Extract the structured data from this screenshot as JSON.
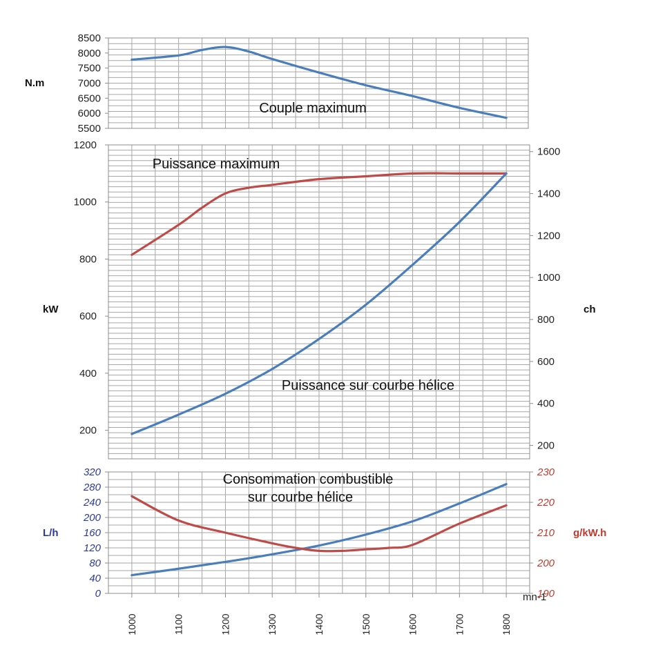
{
  "colors": {
    "blue": "#4a7ebb",
    "red": "#be4b48",
    "axis_blue": "#2b3a9a",
    "axis_red": "#c0392b",
    "grid": "#a6a6a6"
  },
  "chart_data": [
    {
      "id": "couple",
      "type": "line",
      "ylabel": "N.m",
      "ylim": [
        5500,
        8500
      ],
      "yticks": [
        "8500",
        "8000",
        "7500",
        "7000",
        "6500",
        "6000",
        "5500"
      ],
      "annotations": [
        "Couple maximum"
      ],
      "series": [
        {
          "axis": "left",
          "color": "blue",
          "x": [
            1000,
            1100,
            1150,
            1200,
            1250,
            1300,
            1400,
            1500,
            1600,
            1700,
            1800
          ],
          "y": [
            7780,
            7920,
            8100,
            8200,
            8050,
            7800,
            7350,
            6930,
            6570,
            6180,
            5850
          ]
        }
      ]
    },
    {
      "id": "puissance",
      "type": "line",
      "ylabel": "kW",
      "y2label": "ch",
      "ylim": [
        100,
        1200
      ],
      "y2lim": [
        136,
        1632
      ],
      "yticks": [
        "1200",
        "1000",
        "800",
        "600",
        "400",
        "200"
      ],
      "y2ticks": [
        "1600",
        "1400",
        "1200",
        "1000",
        "800",
        "600",
        "400",
        "200"
      ],
      "annotations": [
        "Puissance maximum",
        "Puissance sur courbe hélice"
      ],
      "series": [
        {
          "axis": "left",
          "color": "red",
          "x": [
            1000,
            1100,
            1150,
            1200,
            1250,
            1300,
            1400,
            1500,
            1600,
            1700,
            1800
          ],
          "y": [
            815,
            920,
            980,
            1030,
            1050,
            1060,
            1080,
            1090,
            1100,
            1100,
            1100
          ]
        },
        {
          "axis": "left",
          "color": "blue",
          "x": [
            1000,
            1100,
            1200,
            1300,
            1400,
            1500,
            1600,
            1700,
            1800
          ],
          "y": [
            187,
            255,
            328,
            415,
            520,
            640,
            780,
            930,
            1100
          ]
        }
      ]
    },
    {
      "id": "consommation",
      "type": "line",
      "ylabel": "L/h",
      "y2label": "g/kW.h",
      "ylim": [
        0,
        320
      ],
      "y2lim": [
        190,
        230
      ],
      "yticks": [
        "320",
        "280",
        "240",
        "200",
        "160",
        "120",
        "80",
        "40",
        "0"
      ],
      "y2ticks": [
        "230",
        "220",
        "210",
        "200",
        "190"
      ],
      "annotations": [
        "Consommation combustible",
        "sur courbe hélice"
      ],
      "series": [
        {
          "axis": "left",
          "color": "blue",
          "x": [
            1000,
            1100,
            1200,
            1300,
            1400,
            1500,
            1600,
            1700,
            1800
          ],
          "y": [
            48,
            65,
            83,
            103,
            126,
            155,
            190,
            237,
            288
          ]
        },
        {
          "axis": "right",
          "color": "red",
          "x": [
            1000,
            1100,
            1200,
            1300,
            1350,
            1400,
            1450,
            1500,
            1550,
            1600,
            1700,
            1800
          ],
          "y": [
            222,
            214,
            210,
            206.5,
            205,
            204,
            204,
            204.5,
            205,
            206,
            213,
            219
          ]
        }
      ]
    }
  ],
  "x_axis": {
    "xlim": [
      950,
      1850
    ],
    "ticks": [
      "1000",
      "1100",
      "1200",
      "1300",
      "1400",
      "1500",
      "1600",
      "1700",
      "1800"
    ],
    "label": "mn-1"
  }
}
